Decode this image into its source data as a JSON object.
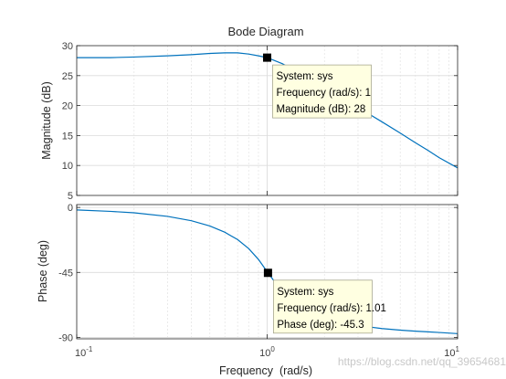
{
  "chart_data": {
    "type": "line",
    "title": "Bode Diagram",
    "xlabel": "Frequency  (rad/s)",
    "xscale": "log",
    "xlim": [
      0.1,
      10
    ],
    "x_ticks": [
      "10",
      "10",
      "10"
    ],
    "x_tick_exponents": [
      "-1",
      "0",
      "1"
    ],
    "grid": true,
    "panels": [
      {
        "name": "magnitude",
        "ylabel": "Magnitude (dB)",
        "ylim": [
          5,
          30
        ],
        "y_ticks": [
          "30",
          "25",
          "20",
          "15",
          "10",
          "5"
        ],
        "y_values": [
          30,
          25,
          20,
          15,
          10,
          5
        ],
        "series": [
          {
            "color": "#0072bd",
            "x": [
              0.1,
              0.15,
              0.2,
              0.3,
              0.4,
              0.5,
              0.6,
              0.7,
              0.8,
              0.9,
              1.0,
              1.2,
              1.5,
              2,
              3,
              4,
              5,
              6,
              7,
              8,
              10
            ],
            "y": [
              28.0,
              28.0,
              28.1,
              28.3,
              28.5,
              28.7,
              28.8,
              28.8,
              28.6,
              28.3,
              28.0,
              27.0,
              25.3,
              23.0,
              19.7,
              17.3,
              15.4,
              13.8,
              12.5,
              11.3,
              9.6
            ]
          }
        ],
        "datatip": {
          "x": 1.0,
          "y": 28,
          "lines": [
            "System: sys",
            "Frequency (rad/s): 1",
            "Magnitude (dB): 28"
          ]
        }
      },
      {
        "name": "phase",
        "ylabel": "Phase (deg)",
        "ylim": [
          -91,
          2
        ],
        "y_ticks": [
          "0",
          "-45",
          "-90"
        ],
        "y_values": [
          0,
          -45,
          -90
        ],
        "series": [
          {
            "color": "#0072bd",
            "x": [
              0.1,
              0.15,
              0.2,
              0.3,
              0.4,
              0.5,
              0.6,
              0.7,
              0.8,
              0.9,
              1.01,
              1.2,
              1.5,
              2,
              3,
              4,
              5,
              6,
              7,
              8,
              10
            ],
            "y": [
              -1.7,
              -2.7,
              -3.7,
              -6.2,
              -9.2,
              -12.8,
              -17.2,
              -22.3,
              -28.5,
              -36.0,
              -45.3,
              -58.5,
              -69.0,
              -76.5,
              -81.8,
              -83.9,
              -85.0,
              -85.7,
              -86.2,
              -86.6,
              -87.4
            ]
          }
        ],
        "datatip": {
          "x": 1.01,
          "y": -45.3,
          "lines": [
            "System: sys",
            "Frequency (rad/s): 1.01",
            "Phase (deg): -45.3"
          ]
        }
      }
    ]
  },
  "watermark": "https://blog.csdn.net/qq_39654681"
}
